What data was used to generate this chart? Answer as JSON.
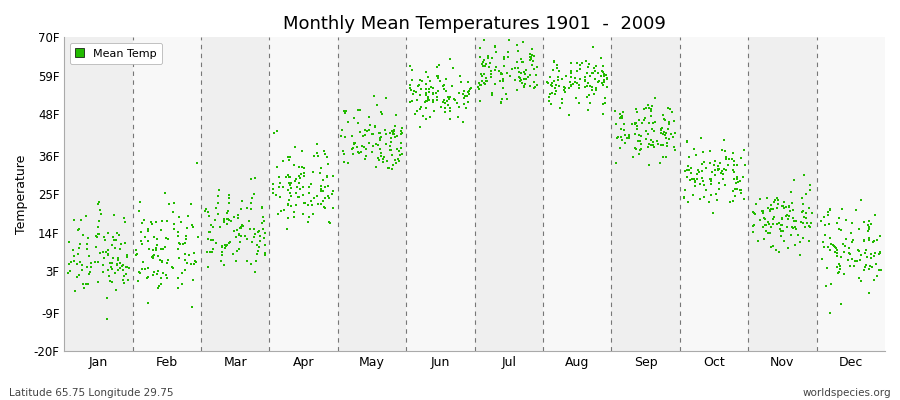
{
  "title": "Monthly Mean Temperatures 1901  -  2009",
  "ylabel": "Temperature",
  "yticks": [
    -20,
    -9,
    3,
    14,
    25,
    36,
    48,
    59,
    70
  ],
  "ytick_labels": [
    "-20F",
    "-9F",
    "3F",
    "14F",
    "25F",
    "36F",
    "48F",
    "59F",
    "70F"
  ],
  "ylim": [
    -20,
    70
  ],
  "months": [
    "Jan",
    "Feb",
    "Mar",
    "Apr",
    "May",
    "Jun",
    "Jul",
    "Aug",
    "Sep",
    "Oct",
    "Nov",
    "Dec"
  ],
  "month_means_F": [
    7.0,
    8.5,
    14.0,
    27.0,
    41.0,
    54.0,
    60.0,
    57.0,
    43.0,
    30.0,
    18.0,
    10.0
  ],
  "month_stds_F": [
    6.0,
    6.5,
    6.0,
    6.0,
    5.0,
    4.0,
    3.5,
    3.5,
    4.0,
    5.0,
    5.0,
    6.0
  ],
  "n_years": 109,
  "dot_color": "#22bb00",
  "dot_size": 3,
  "background_colors": [
    "#efefef",
    "#f8f8f8"
  ],
  "dashed_line_color": "#777777",
  "legend_label": "Mean Temp",
  "footer_left": "Latitude 65.75 Longitude 29.75",
  "footer_right": "worldspecies.org",
  "fig_width": 9.0,
  "fig_height": 4.0,
  "dpi": 100
}
